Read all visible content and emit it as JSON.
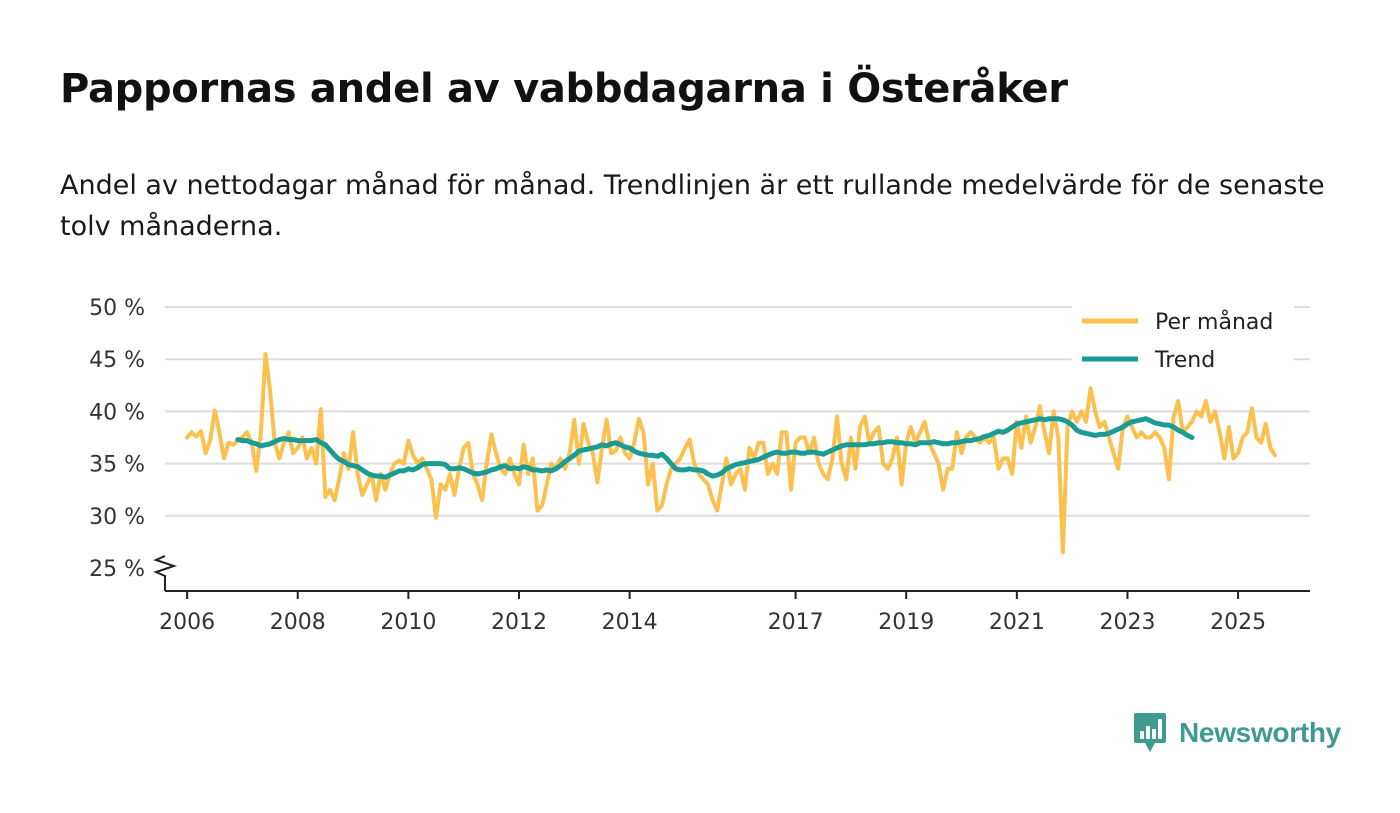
{
  "title": "Pappornas andel av vabbdagarna i Österåker",
  "subtitle": "Andel av nettodagar månad för månad. Trendlinjen är ett rullande medelvärde för de senaste tolv månaderna.",
  "brand": {
    "name": "Newsworthy",
    "color": "#3f9a90",
    "icon": "bar-chart-chat-icon"
  },
  "colors": {
    "monthly": "#fbc04e",
    "trend": "#1a9c95",
    "grid": "#dddddd",
    "axis": "#222222"
  },
  "chart_data": {
    "type": "line",
    "title": "Pappornas andel av vabbdagarna i Österåker",
    "xlabel": "",
    "ylabel": "",
    "xlim": [
      2005.6,
      2026.3
    ],
    "ylim": [
      25,
      50
    ],
    "y_ticks": [
      25,
      30,
      35,
      40,
      45,
      50
    ],
    "y_tick_labels": [
      "25 %",
      "30 %",
      "35 %",
      "40 %",
      "45 %",
      "50 %"
    ],
    "x_ticks": [
      2006,
      2008,
      2010,
      2012,
      2014,
      2017,
      2019,
      2021,
      2023,
      2025
    ],
    "x_tick_labels": [
      "2006",
      "2008",
      "2010",
      "2012",
      "2014",
      "2017",
      "2019",
      "2021",
      "2023",
      "2025"
    ],
    "axis_break": "y",
    "grid": "horizontal",
    "legend": {
      "position": "top-right",
      "entries": [
        "Per månad",
        "Trend"
      ]
    },
    "series": [
      {
        "name": "Per månad",
        "start": "2006-01",
        "values": [
          37.5,
          38.0,
          37.6,
          38.1,
          36.0,
          37.2,
          40.1,
          38.0,
          35.5,
          37.0,
          36.8,
          37.2,
          37.5,
          38.0,
          37.0,
          34.3,
          38.0,
          45.5,
          42.0,
          37.0,
          35.5,
          37.0,
          38.0,
          36.0,
          36.5,
          37.5,
          35.5,
          36.5,
          35.0,
          40.2,
          31.8,
          32.5,
          31.5,
          33.5,
          36.0,
          34.5,
          38.0,
          34.0,
          32.0,
          33.0,
          34.0,
          31.5,
          34.0,
          32.5,
          34.0,
          35.0,
          35.3,
          35.0,
          37.2,
          35.8,
          35.0,
          35.5,
          34.5,
          33.5,
          29.8,
          33.0,
          32.5,
          34.0,
          32.0,
          34.5,
          36.5,
          37.0,
          34.0,
          33.0,
          31.5,
          35.0,
          37.8,
          36.0,
          34.5,
          34.0,
          35.5,
          34.0,
          33.0,
          36.8,
          34.0,
          35.5,
          30.5,
          31.0,
          33.0,
          35.0,
          34.5,
          35.5,
          34.5,
          36.0,
          39.2,
          35.0,
          38.8,
          37.0,
          36.0,
          33.2,
          36.5,
          39.2,
          36.0,
          36.2,
          37.5,
          36.0,
          35.5,
          37.0,
          39.3,
          38.0,
          33.0,
          35.0,
          30.5,
          31.0,
          33.0,
          34.5,
          35.0,
          35.5,
          36.5,
          37.3,
          35.0,
          34.0,
          33.5,
          33.0,
          31.5,
          30.5,
          33.0,
          35.5,
          33.0,
          34.0,
          34.5,
          32.5,
          36.5,
          35.5,
          37.0,
          37.0,
          34.0,
          35.0,
          34.0,
          38.0,
          38.0,
          32.5,
          37.0,
          37.5,
          37.5,
          36.0,
          37.5,
          35.0,
          34.0,
          33.5,
          35.5,
          39.5,
          35.0,
          33.5,
          37.5,
          34.5,
          38.5,
          39.5,
          37.0,
          38.0,
          38.5,
          35.0,
          34.5,
          35.5,
          37.5,
          33.0,
          37.0,
          38.5,
          37.0,
          38.0,
          39.0,
          37.0,
          36.0,
          35.0,
          32.5,
          34.5,
          34.5,
          38.0,
          36.0,
          37.5,
          38.0,
          37.5,
          37.0,
          37.5,
          37.0,
          37.5,
          34.5,
          35.5,
          35.5,
          34.0,
          39.0,
          36.5,
          39.5,
          37.0,
          38.5,
          40.5,
          38.0,
          36.0,
          40.0,
          37.5,
          26.5,
          38.5,
          40.0,
          39.0,
          40.0,
          39.0,
          42.2,
          40.0,
          38.5,
          39.0,
          37.5,
          36.0,
          34.5,
          38.5,
          39.5,
          38.5,
          37.5,
          38.0,
          37.5,
          37.5,
          38.0,
          37.5,
          36.5,
          33.5,
          39.5,
          41.0,
          38.0,
          38.5,
          39.0,
          40.0,
          39.5,
          41.0,
          39.0,
          40.0,
          38.0,
          35.5,
          38.5,
          35.5,
          36.0,
          37.5,
          38.0,
          40.3,
          37.5,
          37.0,
          38.8,
          36.5,
          35.8
        ]
      },
      {
        "name": "Trend",
        "start": "2006-12",
        "values": [
          37.3,
          37.2,
          37.2,
          37.0,
          36.9,
          36.7,
          36.8,
          36.9,
          37.1,
          37.3,
          37.4,
          37.3,
          37.3,
          37.2,
          37.2,
          37.2,
          37.2,
          37.3,
          37.0,
          36.8,
          36.3,
          35.8,
          35.4,
          35.2,
          34.9,
          34.8,
          34.7,
          34.4,
          34.1,
          33.9,
          33.8,
          33.8,
          33.7,
          33.9,
          34.1,
          34.3,
          34.3,
          34.5,
          34.4,
          34.6,
          34.9,
          35.0,
          35.0,
          35.0,
          35.0,
          34.9,
          34.5,
          34.5,
          34.6,
          34.5,
          34.3,
          34.1,
          34.0,
          34.1,
          34.2,
          34.4,
          34.5,
          34.7,
          34.8,
          34.5,
          34.6,
          34.5,
          34.7,
          34.6,
          34.4,
          34.4,
          34.3,
          34.4,
          34.3,
          34.5,
          34.8,
          35.2,
          35.5,
          35.8,
          36.2,
          36.3,
          36.4,
          36.5,
          36.6,
          36.8,
          36.7,
          36.9,
          37.0,
          36.8,
          36.6,
          36.5,
          36.2,
          36.0,
          35.9,
          35.8,
          35.8,
          35.7,
          35.9,
          35.5,
          35.0,
          34.5,
          34.4,
          34.4,
          34.5,
          34.4,
          34.4,
          34.3,
          34.0,
          33.8,
          33.9,
          34.1,
          34.5,
          34.7,
          34.9,
          35.0,
          35.1,
          35.2,
          35.3,
          35.4,
          35.6,
          35.8,
          36.0,
          36.1,
          36.0,
          36.0,
          36.1,
          36.1,
          36.0,
          36.0,
          36.1,
          36.1,
          36.0,
          35.9,
          36.1,
          36.3,
          36.5,
          36.7,
          36.8,
          36.8,
          36.8,
          36.8,
          36.8,
          36.9,
          36.9,
          37.0,
          37.0,
          37.1,
          37.1,
          37.0,
          37.0,
          36.9,
          36.9,
          36.8,
          37.0,
          37.0,
          37.0,
          37.1,
          37.0,
          36.9,
          36.9,
          37.0,
          37.0,
          37.1,
          37.2,
          37.2,
          37.3,
          37.4,
          37.6,
          37.7,
          37.9,
          38.1,
          38.0,
          38.2,
          38.5,
          38.8,
          38.9,
          39.0,
          39.1,
          39.2,
          39.3,
          39.2,
          39.3,
          39.3,
          39.3,
          39.2,
          39.0,
          38.7,
          38.2,
          38.0,
          37.9,
          37.8,
          37.7,
          37.8,
          37.8,
          37.9,
          38.1,
          38.3,
          38.5,
          38.8,
          39.0,
          39.1,
          39.2,
          39.3,
          39.1,
          38.9,
          38.8,
          38.7,
          38.7,
          38.5,
          38.2,
          38.0,
          37.7,
          37.5
        ]
      }
    ]
  }
}
